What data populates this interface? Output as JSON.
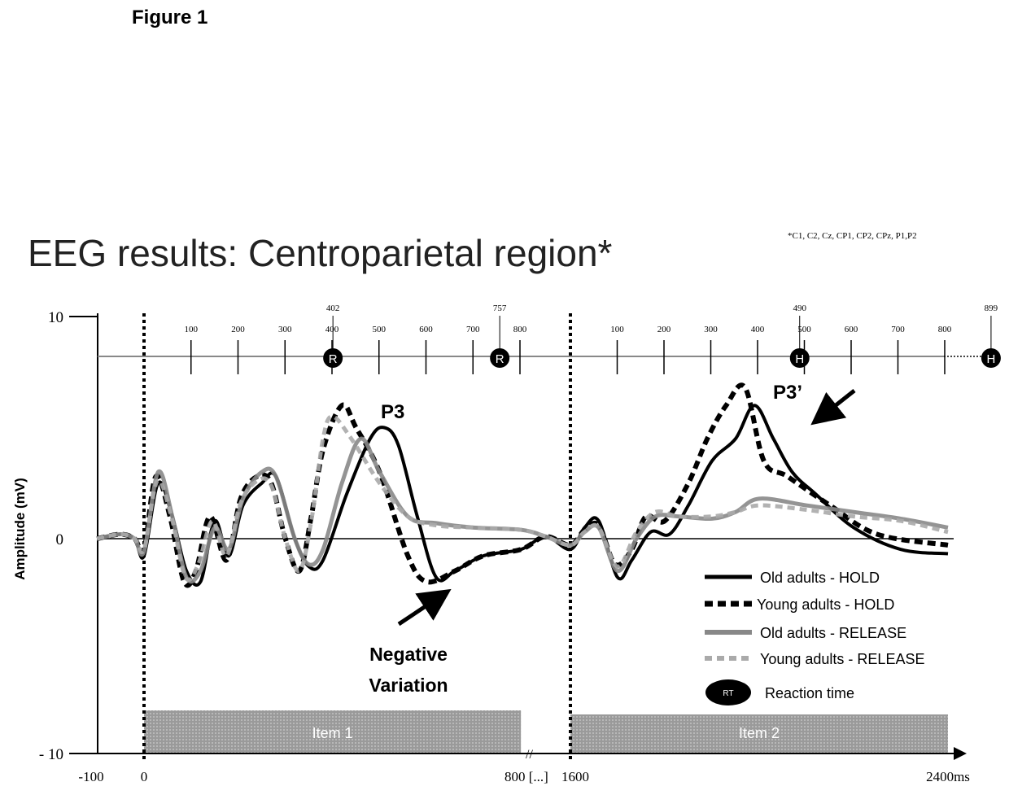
{
  "figure_label": "Figure 1",
  "chart_data": {
    "type": "line",
    "title": "EEG results: Centroparietal region*",
    "footnote": "*C1, C2, Cz, CP1, CP2, CPz, P1,P2",
    "ylabel": "Amplitude (mV)",
    "xlabel_unit": "ms",
    "ylim": [
      -10,
      10
    ],
    "y_ticks": [
      "10",
      "0",
      "- 10"
    ],
    "x_ticks": [
      {
        "v": -100,
        "label": "-100"
      },
      {
        "v": 0,
        "label": "0"
      },
      {
        "v": 800,
        "label": "800 [...]"
      },
      {
        "v": 1600,
        "label": "1600"
      },
      {
        "v": 2400,
        "label": "2400ms"
      }
    ],
    "axis_break": "//",
    "timeline": {
      "segments": [
        {
          "start": 0,
          "ticks": [
            100,
            200,
            300,
            400,
            500,
            600,
            700,
            800
          ],
          "rt_markers": [
            {
              "v": 402,
              "label": "R"
            },
            {
              "v": 757,
              "label": "R"
            }
          ]
        },
        {
          "start": 1600,
          "ticks": [
            100,
            200,
            300,
            400,
            500,
            600,
            700,
            800
          ],
          "rt_markers": [
            {
              "v": 490,
              "label": "H"
            },
            {
              "v": 899,
              "label": "H"
            }
          ]
        }
      ]
    },
    "stimuli": [
      {
        "label": "Item 1",
        "start": 0,
        "end": 800
      },
      {
        "label": "Item 2",
        "start": 1600,
        "end": 2400
      }
    ],
    "annotations": {
      "p3": "P3",
      "p3prime": "P3’",
      "nv1": "Negative",
      "nv2": "Variation"
    },
    "series": [
      {
        "name": "Old adults - HOLD",
        "color": "#000000",
        "dash": "solid",
        "points": [
          [
            -100,
            0
          ],
          [
            -50,
            0.2
          ],
          [
            -20,
            0
          ],
          [
            0,
            -0.8
          ],
          [
            30,
            2.5
          ],
          [
            60,
            1
          ],
          [
            90,
            -1.5
          ],
          [
            120,
            -2
          ],
          [
            150,
            0.8
          ],
          [
            180,
            -0.8
          ],
          [
            210,
            1.5
          ],
          [
            250,
            2.5
          ],
          [
            280,
            2.8
          ],
          [
            320,
            0
          ],
          [
            350,
            -1.3
          ],
          [
            380,
            -1
          ],
          [
            430,
            2
          ],
          [
            480,
            4.5
          ],
          [
            510,
            5
          ],
          [
            540,
            4.2
          ],
          [
            580,
            1
          ],
          [
            620,
            -1.8
          ],
          [
            660,
            -1.5
          ],
          [
            720,
            -0.8
          ],
          [
            800,
            -0.5
          ],
          [
            1200,
            0.1
          ],
          [
            1600,
            -0.5
          ],
          [
            1630,
            0.5
          ],
          [
            1660,
            0.8
          ],
          [
            1700,
            -1.8
          ],
          [
            1730,
            -1
          ],
          [
            1770,
            0.3
          ],
          [
            1810,
            0.2
          ],
          [
            1850,
            1.5
          ],
          [
            1900,
            3.5
          ],
          [
            1950,
            4.5
          ],
          [
            1990,
            6
          ],
          [
            2030,
            4.5
          ],
          [
            2070,
            3
          ],
          [
            2120,
            2
          ],
          [
            2200,
            0.5
          ],
          [
            2300,
            -0.5
          ],
          [
            2400,
            -0.7
          ]
        ]
      },
      {
        "name": "Young adults - HOLD",
        "color": "#000000",
        "dash": "dashed",
        "points": [
          [
            -100,
            0
          ],
          [
            -50,
            0.2
          ],
          [
            -20,
            0
          ],
          [
            0,
            -0.5
          ],
          [
            25,
            2.8
          ],
          [
            55,
            1
          ],
          [
            85,
            -2
          ],
          [
            110,
            -1.5
          ],
          [
            140,
            1
          ],
          [
            175,
            -1
          ],
          [
            205,
            1.8
          ],
          [
            240,
            2.8
          ],
          [
            270,
            2.5
          ],
          [
            300,
            0
          ],
          [
            330,
            -1.5
          ],
          [
            355,
            1
          ],
          [
            380,
            4
          ],
          [
            420,
            6
          ],
          [
            450,
            5
          ],
          [
            500,
            3
          ],
          [
            560,
            -0.8
          ],
          [
            600,
            -2
          ],
          [
            660,
            -1.5
          ],
          [
            720,
            -0.8
          ],
          [
            800,
            -0.5
          ],
          [
            1200,
            0.1
          ],
          [
            1600,
            -0.3
          ],
          [
            1630,
            0.4
          ],
          [
            1660,
            0.6
          ],
          [
            1695,
            -1.2
          ],
          [
            1730,
            -0.5
          ],
          [
            1760,
            1
          ],
          [
            1800,
            0.8
          ],
          [
            1850,
            2.5
          ],
          [
            1890,
            4.5
          ],
          [
            1930,
            6
          ],
          [
            1970,
            6.8
          ],
          [
            2010,
            3.5
          ],
          [
            2060,
            2.8
          ],
          [
            2150,
            1.5
          ],
          [
            2250,
            0.2
          ],
          [
            2400,
            -0.3
          ]
        ]
      },
      {
        "name": "Old adults - RELEASE",
        "color": "#888888",
        "dash": "solid",
        "points": [
          [
            -100,
            0
          ],
          [
            -50,
            0.2
          ],
          [
            -20,
            0
          ],
          [
            0,
            -0.6
          ],
          [
            30,
            3
          ],
          [
            60,
            1
          ],
          [
            90,
            -1.8
          ],
          [
            120,
            -1.5
          ],
          [
            150,
            0.5
          ],
          [
            180,
            -0.5
          ],
          [
            210,
            1.8
          ],
          [
            250,
            3
          ],
          [
            280,
            2.8
          ],
          [
            320,
            0
          ],
          [
            350,
            -1.2
          ],
          [
            380,
            -0.5
          ],
          [
            420,
            2.5
          ],
          [
            460,
            4.5
          ],
          [
            500,
            3
          ],
          [
            560,
            1
          ],
          [
            620,
            0.7
          ],
          [
            700,
            0.5
          ],
          [
            800,
            0.4
          ],
          [
            1200,
            0.1
          ],
          [
            1600,
            -0.3
          ],
          [
            1630,
            0.3
          ],
          [
            1660,
            0.5
          ],
          [
            1700,
            -1.5
          ],
          [
            1740,
            0
          ],
          [
            1780,
            1
          ],
          [
            1830,
            1
          ],
          [
            1900,
            0.9
          ],
          [
            1950,
            1.2
          ],
          [
            2000,
            1.8
          ],
          [
            2100,
            1.5
          ],
          [
            2200,
            1.2
          ],
          [
            2300,
            0.9
          ],
          [
            2400,
            0.5
          ]
        ]
      },
      {
        "name": "Young adults - RELEASE",
        "color": "#aaaaaa",
        "dash": "dashed",
        "points": [
          [
            -100,
            0
          ],
          [
            -50,
            0.2
          ],
          [
            -20,
            0
          ],
          [
            0,
            -0.5
          ],
          [
            28,
            2.6
          ],
          [
            58,
            1
          ],
          [
            88,
            -1.8
          ],
          [
            115,
            -1.2
          ],
          [
            145,
            0.8
          ],
          [
            175,
            -0.8
          ],
          [
            205,
            1.6
          ],
          [
            240,
            2.6
          ],
          [
            270,
            2.4
          ],
          [
            300,
            0
          ],
          [
            330,
            -1.5
          ],
          [
            355,
            0.8
          ],
          [
            380,
            4.5
          ],
          [
            400,
            5.5
          ],
          [
            440,
            4.5
          ],
          [
            500,
            2.5
          ],
          [
            560,
            1
          ],
          [
            620,
            0.6
          ],
          [
            700,
            0.5
          ],
          [
            800,
            0.4
          ],
          [
            1200,
            0.1
          ],
          [
            1600,
            -0.3
          ],
          [
            1630,
            0.3
          ],
          [
            1660,
            0.5
          ],
          [
            1700,
            -1.3
          ],
          [
            1740,
            0.3
          ],
          [
            1780,
            1.2
          ],
          [
            1830,
            1
          ],
          [
            1900,
            1
          ],
          [
            1950,
            1.2
          ],
          [
            2000,
            1.5
          ],
          [
            2100,
            1.3
          ],
          [
            2200,
            1
          ],
          [
            2300,
            0.8
          ],
          [
            2400,
            0.3
          ]
        ]
      }
    ],
    "legend": {
      "placement": "bottom-right",
      "rt_badge": "RT",
      "rt_label": "Reaction time"
    }
  }
}
